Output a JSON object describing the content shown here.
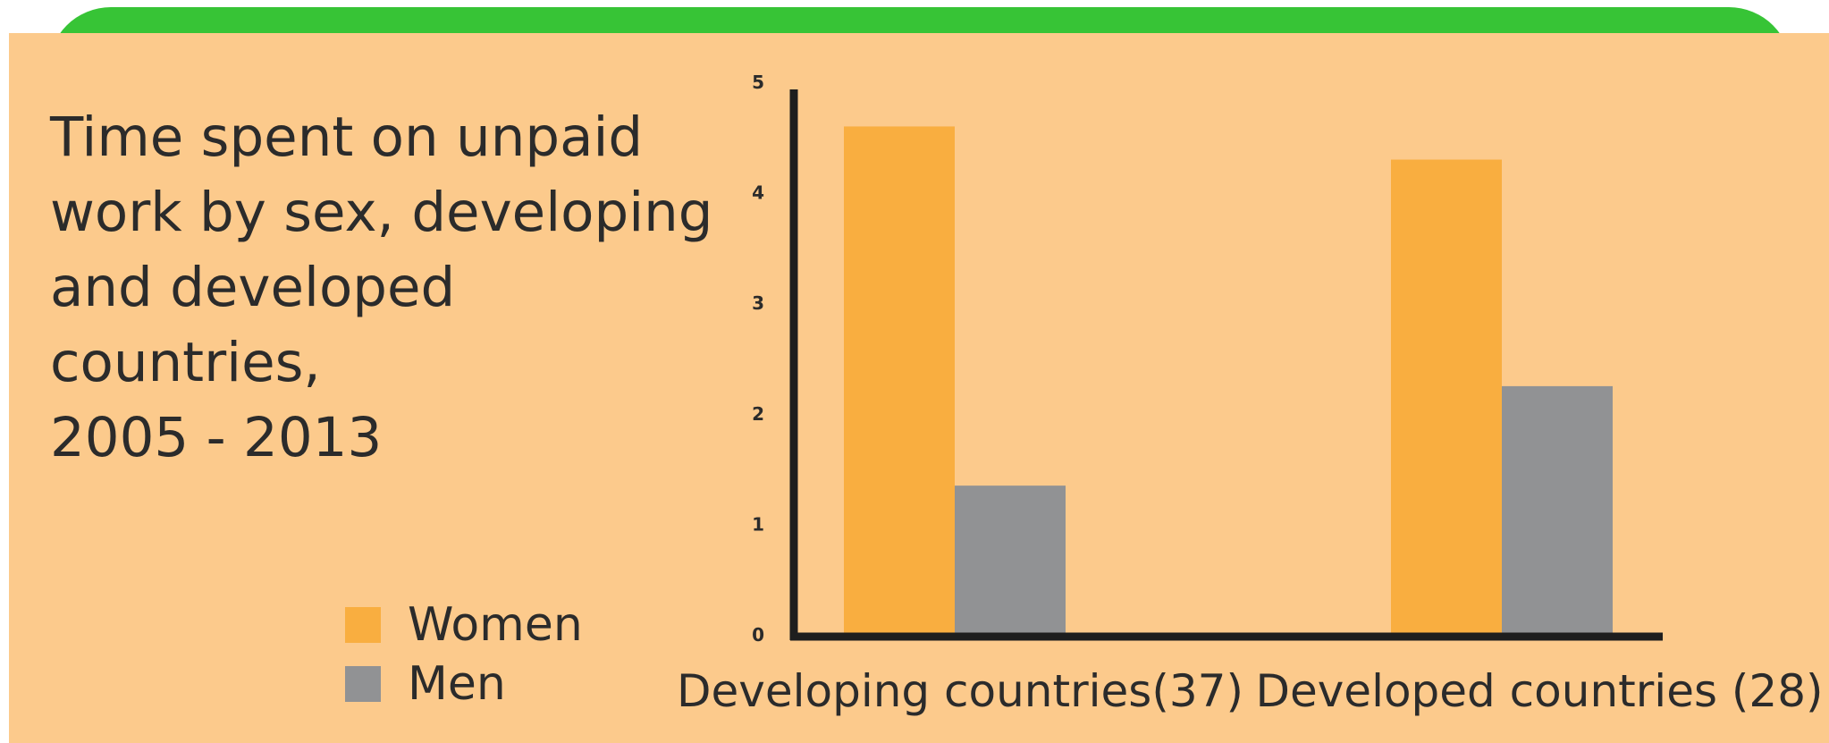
{
  "chart_data": {
    "type": "bar",
    "title": "Time spent on unpaid\nwork by sex, developing\nand developed\ncountries,\n2005 - 2013",
    "categories": [
      "Developing countries(37)",
      "Developed countries (28)"
    ],
    "series": [
      {
        "name": "Women",
        "values": [
          4.6,
          4.3
        ],
        "color": "#f9ae40"
      },
      {
        "name": "Men",
        "values": [
          1.35,
          2.25
        ],
        "color": "#919294"
      }
    ],
    "yticks": [
      "0",
      "1",
      "2",
      "3",
      "4",
      "5"
    ],
    "ylim": [
      0,
      5
    ],
    "xlabel": "",
    "ylabel": "",
    "grid": false,
    "legend_position": "bottom-left"
  },
  "colors": {
    "background": "#fcca8c",
    "top_band": "#37c436",
    "axis": "#1e1e1e",
    "text": "#2b2b2b"
  }
}
